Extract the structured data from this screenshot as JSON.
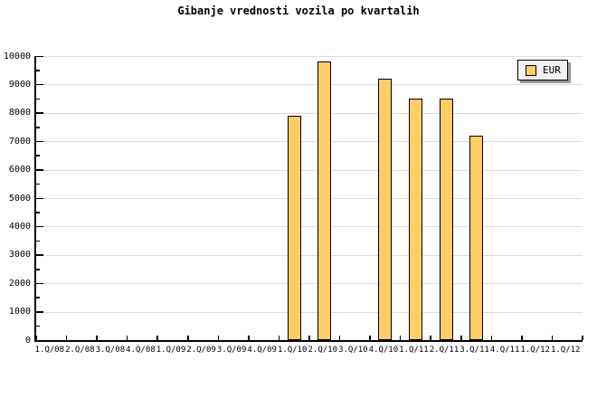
{
  "title": "Gibanje vrednosti vozila po kvartalih",
  "legend": {
    "label": "EUR"
  },
  "colors": {
    "background": "#FFFFFF",
    "bar_fill": "#FFCC66",
    "bar_border": "#000000",
    "grid": "#DCDCDC",
    "axis": "#000000",
    "text": "#000000",
    "legend_bg": "#F2F2F2",
    "legend_shadow": "#999999"
  },
  "chart_data": {
    "type": "bar",
    "title": "Gibanje vrednosti vozila po kvartalih",
    "categories": [
      "1.Q/08",
      "2.Q/08",
      "3.Q/08",
      "4.Q/08",
      "1.Q/09",
      "2.Q/09",
      "3.Q/09",
      "4.Q/09",
      "1.Q/10",
      "2.Q/10",
      "3.Q/10",
      "4.Q/10",
      "1.Q/11",
      "2.Q/11",
      "3.Q/11",
      "4.Q/11",
      "1.Q/12",
      "1.Q/12"
    ],
    "series": [
      {
        "name": "EUR",
        "values": [
          null,
          null,
          null,
          null,
          null,
          null,
          null,
          null,
          7900,
          9800,
          null,
          9200,
          8500,
          8500,
          7200,
          null,
          null,
          null
        ]
      }
    ],
    "xlabel": "",
    "ylabel": "",
    "ylim": [
      0,
      10000
    ],
    "ytick_step": 1000,
    "ytick_minor_step": 500,
    "grid": "horizontal",
    "legend_position": "top-right"
  }
}
